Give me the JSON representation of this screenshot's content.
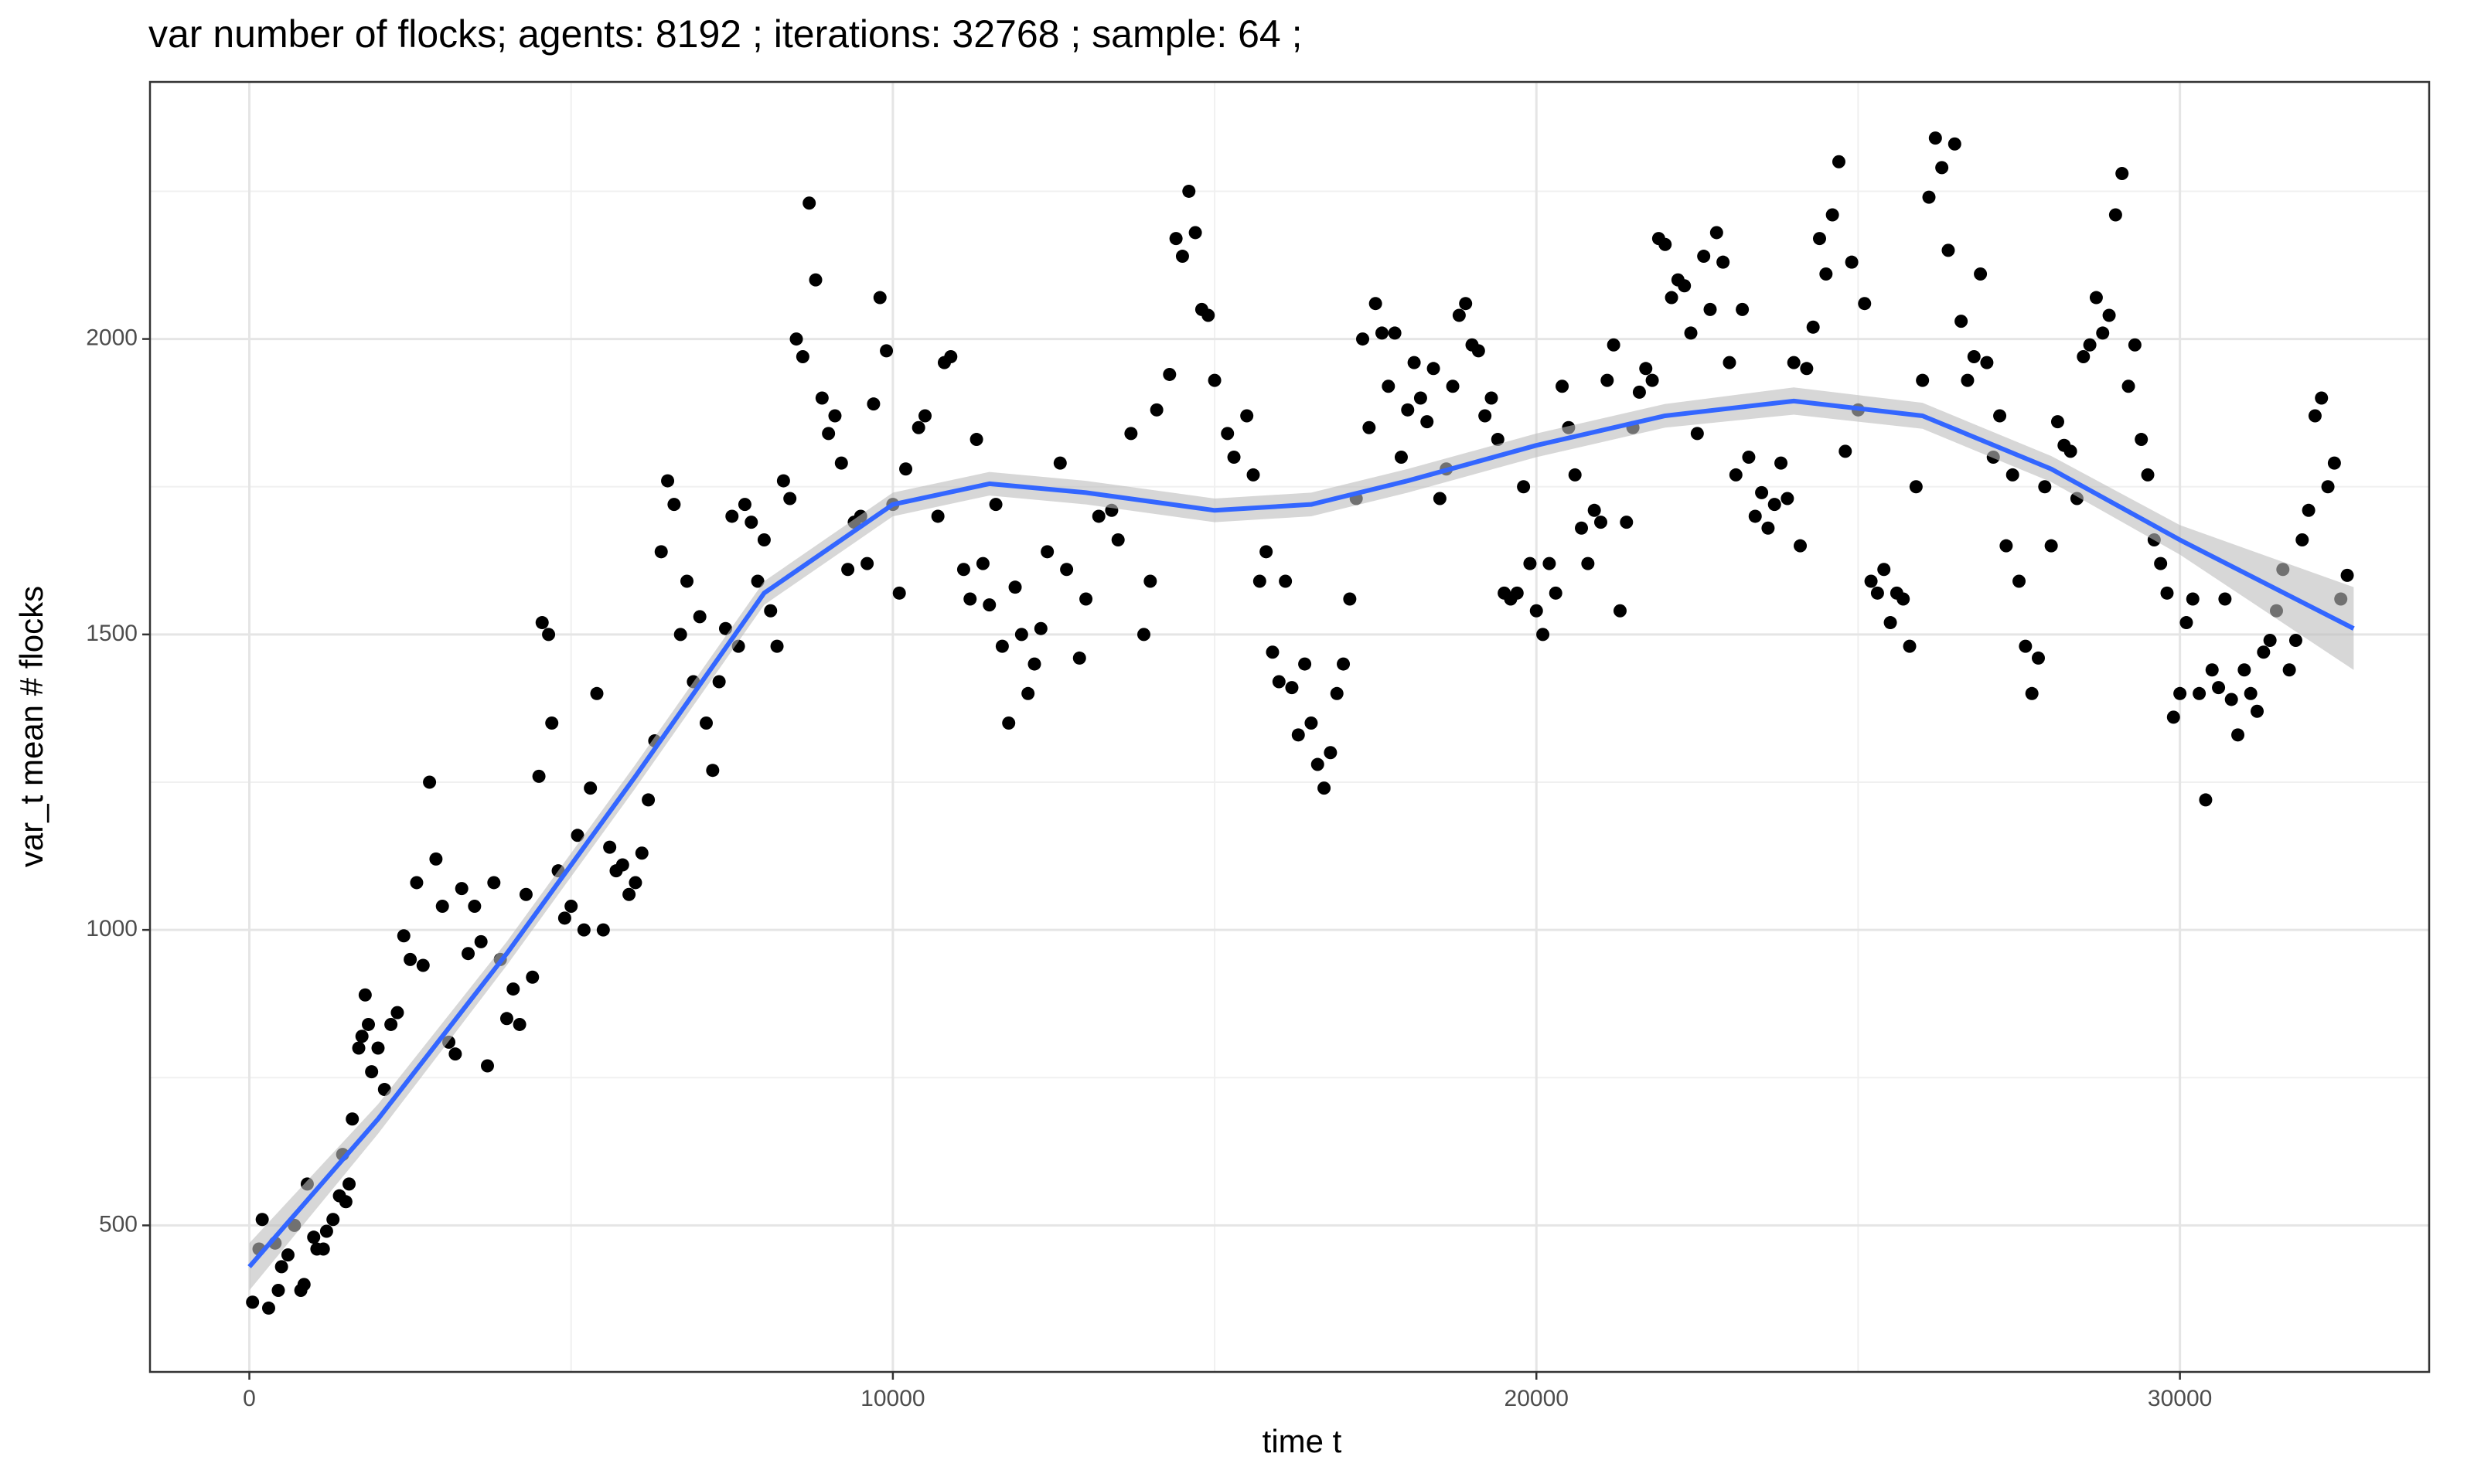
{
  "chart_data": {
    "type": "scatter",
    "title": "var number of flocks; agents: 8192 ; iterations: 32768 ; sample: 64 ;",
    "x_label": "time t",
    "y_label": "var_t mean # flocks",
    "color": "#000000",
    "xlim": [
      -1544,
      33873
    ],
    "ylim": [
      252,
      2435
    ],
    "xticks": [
      0,
      10000,
      20000,
      30000
    ],
    "yticks": [
      500,
      1000,
      1500,
      2000
    ],
    "xminor": [
      5000,
      15000,
      25000
    ],
    "yminor": [
      750,
      1250,
      1750,
      2250
    ],
    "grid": true,
    "x": [
      50,
      150,
      200,
      300,
      400,
      450,
      500,
      600,
      700,
      800,
      850,
      900,
      1000,
      1050,
      1150,
      1200,
      1300,
      1400,
      1450,
      1500,
      1550,
      1600,
      1700,
      1750,
      1800,
      1850,
      1900,
      2000,
      2100,
      2200,
      2300,
      2400,
      2500,
      2600,
      2700,
      2800,
      2900,
      3000,
      3100,
      3200,
      3300,
      3400,
      3500,
      3600,
      3700,
      3800,
      3900,
      4000,
      4100,
      4200,
      4300,
      4400,
      4500,
      4550,
      4650,
      4700,
      4800,
      4900,
      5000,
      5100,
      5200,
      5300,
      5400,
      5500,
      5600,
      5700,
      5800,
      5900,
      6000,
      6100,
      6200,
      6300,
      6400,
      6500,
      6600,
      6700,
      6800,
      6900,
      7000,
      7100,
      7200,
      7300,
      7400,
      7500,
      7600,
      7700,
      7800,
      7900,
      8000,
      8100,
      8200,
      8300,
      8400,
      8500,
      8600,
      8700,
      8800,
      8900,
      9000,
      9100,
      9200,
      9300,
      9400,
      9500,
      9600,
      9700,
      9800,
      9900,
      10000,
      10100,
      10200,
      10400,
      10500,
      10700,
      10800,
      10900,
      11100,
      11200,
      11300,
      11400,
      11500,
      11600,
      11700,
      11800,
      11900,
      12000,
      12100,
      12200,
      12300,
      12400,
      12600,
      12700,
      12900,
      13000,
      13200,
      13400,
      13500,
      13700,
      13900,
      14000,
      14100,
      14300,
      14400,
      14500,
      14600,
      14700,
      14800,
      14900,
      15000,
      15200,
      15300,
      15500,
      15600,
      15700,
      15800,
      15900,
      16000,
      16100,
      16200,
      16300,
      16400,
      16500,
      16600,
      16700,
      16800,
      16900,
      17000,
      17100,
      17200,
      17300,
      17400,
      17500,
      17600,
      17700,
      17800,
      17900,
      18000,
      18100,
      18200,
      18300,
      18400,
      18500,
      18600,
      18700,
      18800,
      18900,
      19000,
      19100,
      19200,
      19300,
      19400,
      19500,
      19600,
      19700,
      19800,
      19900,
      20000,
      20100,
      20200,
      20300,
      20400,
      20500,
      20600,
      20700,
      20800,
      20900,
      21000,
      21100,
      21200,
      21300,
      21400,
      21500,
      21600,
      21700,
      21800,
      21900,
      22000,
      22100,
      22200,
      22300,
      22400,
      22500,
      22600,
      22700,
      22800,
      22900,
      23000,
      23100,
      23200,
      23300,
      23400,
      23500,
      23600,
      23700,
      23800,
      23900,
      24000,
      24100,
      24200,
      24300,
      24400,
      24500,
      24600,
      24700,
      24800,
      24900,
      25000,
      25100,
      25200,
      25300,
      25400,
      25500,
      25600,
      25700,
      25800,
      25900,
      26000,
      26100,
      26200,
      26300,
      26400,
      26500,
      26600,
      26700,
      26800,
      26900,
      27000,
      27100,
      27200,
      27300,
      27400,
      27500,
      27600,
      27700,
      27800,
      27900,
      28000,
      28100,
      28200,
      28300,
      28400,
      28500,
      28600,
      28700,
      28800,
      28900,
      29000,
      29100,
      29200,
      29300,
      29400,
      29500,
      29600,
      29700,
      29800,
      29900,
      30000,
      30100,
      30200,
      30300,
      30400,
      30500,
      30600,
      30700,
      30800,
      30900,
      31000,
      31100,
      31200,
      31300,
      31400,
      31500,
      31600,
      31700,
      31800,
      31900,
      32000,
      32100,
      32200,
      32300,
      32400,
      32500,
      32600
    ],
    "values": [
      370,
      460,
      510,
      360,
      470,
      390,
      430,
      450,
      500,
      390,
      400,
      570,
      480,
      460,
      460,
      490,
      510,
      550,
      620,
      540,
      570,
      680,
      800,
      820,
      890,
      840,
      760,
      800,
      730,
      840,
      860,
      990,
      950,
      1080,
      940,
      1250,
      1120,
      1040,
      810,
      790,
      1070,
      960,
      1040,
      980,
      770,
      1080,
      950,
      850,
      900,
      840,
      1060,
      920,
      1260,
      1520,
      1500,
      1350,
      1100,
      1020,
      1040,
      1160,
      1000,
      1240,
      1400,
      1000,
      1140,
      1100,
      1110,
      1060,
      1080,
      1130,
      1220,
      1320,
      1640,
      1760,
      1720,
      1500,
      1590,
      1420,
      1530,
      1350,
      1270,
      1420,
      1510,
      1700,
      1480,
      1720,
      1690,
      1590,
      1660,
      1540,
      1480,
      1760,
      1730,
      2000,
      1970,
      2230,
      2100,
      1900,
      1840,
      1870,
      1790,
      1610,
      1690,
      1700,
      1620,
      1890,
      2070,
      1980,
      1720,
      1570,
      1780,
      1850,
      1870,
      1700,
      1960,
      1970,
      1610,
      1560,
      1830,
      1620,
      1550,
      1720,
      1480,
      1350,
      1580,
      1500,
      1400,
      1450,
      1510,
      1640,
      1790,
      1610,
      1460,
      1560,
      1700,
      1710,
      1660,
      1840,
      1500,
      1590,
      1880,
      1940,
      2170,
      2140,
      2250,
      2180,
      2050,
      2040,
      1930,
      1840,
      1800,
      1870,
      1770,
      1590,
      1640,
      1470,
      1420,
      1590,
      1410,
      1330,
      1450,
      1350,
      1280,
      1240,
      1300,
      1400,
      1450,
      1560,
      1730,
      2000,
      1850,
      2060,
      2010,
      1920,
      2010,
      1800,
      1880,
      1960,
      1900,
      1860,
      1950,
      1730,
      1780,
      1920,
      2040,
      2060,
      1990,
      1980,
      1870,
      1900,
      1830,
      1570,
      1560,
      1570,
      1750,
      1620,
      1540,
      1500,
      1620,
      1570,
      1920,
      1850,
      1770,
      1680,
      1620,
      1710,
      1690,
      1930,
      1990,
      1540,
      1690,
      1850,
      1910,
      1950,
      1930,
      2170,
      2160,
      2070,
      2100,
      2090,
      2010,
      1840,
      2140,
      2050,
      2180,
      2130,
      1960,
      1770,
      2050,
      1800,
      1700,
      1740,
      1680,
      1720,
      1790,
      1730,
      1960,
      1650,
      1950,
      2020,
      2170,
      2110,
      2210,
      2300,
      1810,
      2130,
      1880,
      2060,
      1590,
      1570,
      1610,
      1520,
      1570,
      1560,
      1480,
      1750,
      1930,
      2240,
      2340,
      2290,
      2150,
      2330,
      2030,
      1930,
      1970,
      2110,
      1960,
      1800,
      1870,
      1650,
      1770,
      1590,
      1480,
      1400,
      1460,
      1750,
      1650,
      1860,
      1820,
      1810,
      1730,
      1970,
      1990,
      2070,
      2010,
      2040,
      2210,
      2280,
      1920,
      1990,
      1830,
      1770,
      1660,
      1620,
      1570,
      1360,
      1400,
      1520,
      1560,
      1400,
      1220,
      1440,
      1410,
      1560,
      1390,
      1330,
      1440,
      1400,
      1370,
      1470,
      1490,
      1540,
      1610,
      1440,
      1490,
      1660,
      1710,
      1870,
      1900,
      1750,
      1790,
      1560,
      1600
    ],
    "smooth": {
      "color": "#3366ff",
      "band_color": "#bdbdbd",
      "x": [
        0,
        2000,
        4000,
        6000,
        8000,
        10000,
        11500,
        13000,
        15000,
        16500,
        18000,
        20000,
        22000,
        24000,
        26000,
        28000,
        30000,
        32700
      ],
      "values": [
        430,
        680,
        960,
        1260,
        1570,
        1720,
        1755,
        1740,
        1710,
        1720,
        1760,
        1820,
        1870,
        1895,
        1870,
        1780,
        1660,
        1510
      ],
      "lower": [
        390,
        655,
        940,
        1240,
        1550,
        1700,
        1735,
        1720,
        1690,
        1700,
        1740,
        1800,
        1850,
        1872,
        1848,
        1758,
        1635,
        1440
      ],
      "upper": [
        470,
        705,
        980,
        1280,
        1590,
        1740,
        1775,
        1760,
        1730,
        1740,
        1780,
        1840,
        1890,
        1918,
        1892,
        1802,
        1685,
        1580
      ]
    }
  }
}
